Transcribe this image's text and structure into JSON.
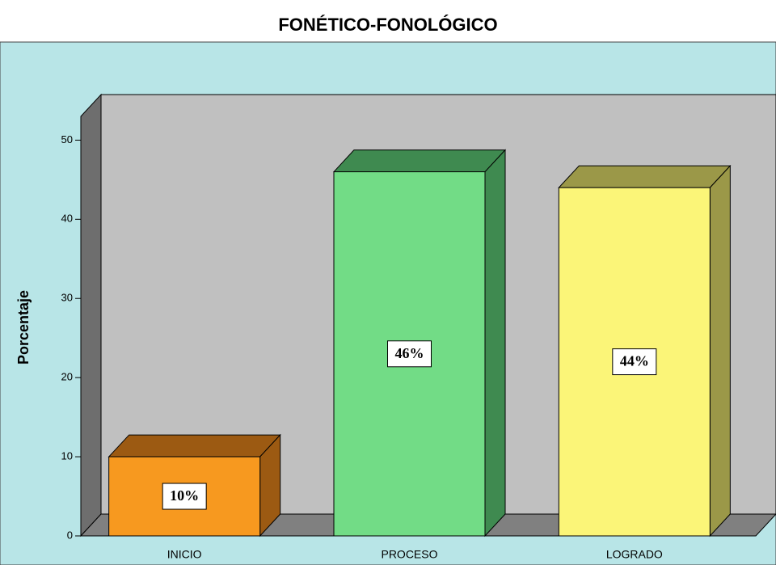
{
  "chart_data": {
    "type": "bar3d",
    "title": "FONÉTICO-FONOLÓGICO",
    "y_label": "Porcentaje",
    "categories": [
      "INICIO",
      "PROCESO",
      "LOGRADO"
    ],
    "values": [
      10,
      46,
      44
    ],
    "value_labels": [
      "10%",
      "46%",
      "44%"
    ],
    "colors": [
      "#f7991f",
      "#72dc86",
      "#fbf578"
    ],
    "side_colors": [
      "#9c5a12",
      "#3f8a50",
      "#9b9848"
    ],
    "ylim": [
      0,
      53
    ],
    "yticks": [
      0,
      10,
      20,
      30,
      40,
      50
    ]
  }
}
